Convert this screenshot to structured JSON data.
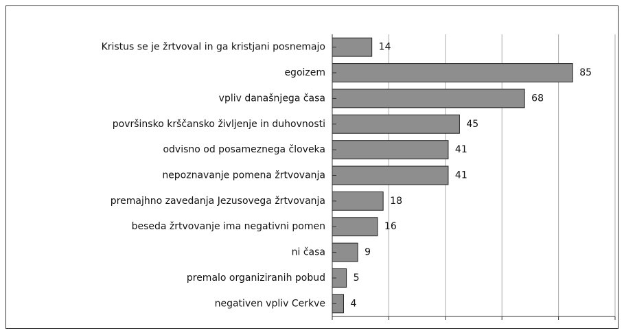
{
  "chart_data": {
    "type": "bar",
    "orientation": "horizontal",
    "categories": [
      "Kristus se je žrtvoval in ga kristjani posnemajo",
      "egoizem",
      "vpliv današnjega časa",
      "površinsko krščansko življenje in duhovnosti",
      "odvisno od posameznega človeka",
      "nepoznavanje pomena žrtvovanja",
      "premajhno zavedanja Jezusovega žrtvovanja",
      "beseda žrtvovanje ima negativni pomen",
      "ni časa",
      "premalo organiziranih pobud",
      "negativen vpliv Cerkve"
    ],
    "values": [
      14,
      85,
      68,
      45,
      41,
      41,
      18,
      16,
      9,
      5,
      4
    ],
    "color": "#8e8e8e",
    "xlim": [
      0,
      100
    ],
    "xticks": [
      0,
      20,
      40,
      60,
      80,
      100
    ],
    "grid": true
  }
}
